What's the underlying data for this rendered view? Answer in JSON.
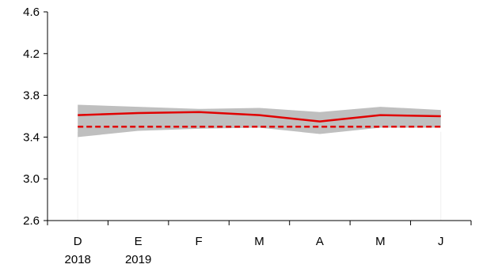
{
  "chart_data": {
    "type": "line",
    "title": "",
    "xlabel": "",
    "ylabel": "",
    "ylim": [
      2.6,
      4.6
    ],
    "yticks": [
      2.6,
      3.0,
      3.4,
      3.8,
      4.2,
      4.6
    ],
    "ytick_labels": [
      "2.6",
      "3.0",
      "3.4",
      "3.8",
      "4.2",
      "4.6"
    ],
    "categories": [
      "D",
      "E",
      "F",
      "M",
      "A",
      "M",
      "J"
    ],
    "year_labels": [
      "2018",
      "2019",
      "",
      "",
      "",
      "",
      ""
    ],
    "grid": false,
    "legend": "none",
    "series": [
      {
        "kind": "band",
        "color": "#bfbfbf",
        "upper": [
          3.71,
          3.69,
          3.67,
          3.68,
          3.64,
          3.69,
          3.66
        ],
        "lower": [
          3.4,
          3.46,
          3.48,
          3.49,
          3.43,
          3.49,
          3.49
        ]
      },
      {
        "kind": "line",
        "style": "solid",
        "color": "#e00000",
        "values": [
          3.61,
          3.63,
          3.64,
          3.61,
          3.55,
          3.61,
          3.6
        ]
      },
      {
        "kind": "line",
        "style": "dashed",
        "color": "#e00000",
        "values": [
          3.5,
          3.5,
          3.5,
          3.5,
          3.5,
          3.5,
          3.5
        ]
      }
    ]
  }
}
